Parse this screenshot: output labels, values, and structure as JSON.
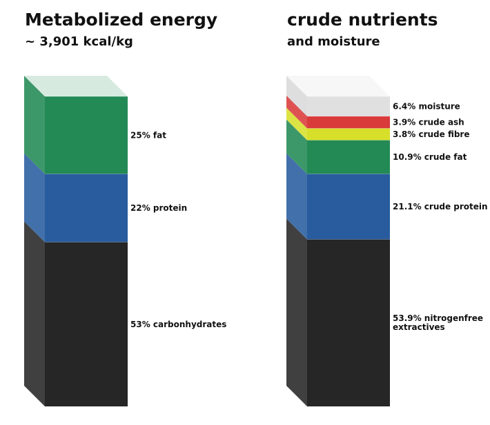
{
  "chart_data": [
    {
      "type": "bar",
      "subtype": "stacked-3d-column",
      "title": "Metabolized energy",
      "subtitle": "~ 3,901 kcal/kg",
      "segments": [
        {
          "label": "53% carbonhydrates",
          "value": 53,
          "color": "#262626"
        },
        {
          "label": "22% protein",
          "value": 22,
          "color": "#285c9e"
        },
        {
          "label": "25% fat",
          "value": 25,
          "color": "#238a55"
        }
      ]
    },
    {
      "type": "bar",
      "subtype": "stacked-3d-column",
      "title": "crude nutrients",
      "subtitle": "and moisture",
      "segments": [
        {
          "label": "53.9% nitrogenfree extractives",
          "value": 53.9,
          "color": "#262626"
        },
        {
          "label": "21.1% crude protein",
          "value": 21.1,
          "color": "#285c9e"
        },
        {
          "label": "10.9% crude fat",
          "value": 10.9,
          "color": "#238a55"
        },
        {
          "label": "3.8% crude fibre",
          "value": 3.8,
          "color": "#d7df2a"
        },
        {
          "label": "3.9% crude ash",
          "value": 3.9,
          "color": "#d93a3a"
        },
        {
          "label": "6.4% moisture",
          "value": 6.4,
          "color": "#d3d3d3"
        }
      ]
    }
  ]
}
